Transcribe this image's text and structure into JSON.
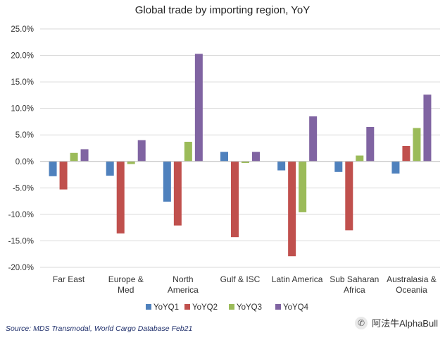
{
  "chart_data": {
    "type": "bar",
    "title": "Global trade by importing region, YoY",
    "xlabel": "",
    "ylabel": "",
    "ylim": [
      -20,
      25
    ],
    "yticks": [
      "25.0%",
      "20.0%",
      "15.0%",
      "10.0%",
      "5.0%",
      "0.0%",
      "-5.0%",
      "-10.0%",
      "-15.0%",
      "-20.0%"
    ],
    "ytick_values": [
      25,
      20,
      15,
      10,
      5,
      0,
      -5,
      -10,
      -15,
      -20
    ],
    "categories": [
      [
        "Far East"
      ],
      [
        "Europe &",
        "Med"
      ],
      [
        "North",
        "America"
      ],
      [
        "Gulf & ISC"
      ],
      [
        "Latin America"
      ],
      [
        "Sub Saharan",
        "Africa"
      ],
      [
        "Australasia &",
        "Oceania"
      ]
    ],
    "series": [
      {
        "name": "YoYQ1",
        "color": "#4f81bd",
        "values": [
          -2.8,
          -2.7,
          -7.6,
          1.8,
          -1.7,
          -2.0,
          -2.3
        ]
      },
      {
        "name": "YoYQ2",
        "color": "#c0504d",
        "values": [
          -5.3,
          -13.6,
          -12.1,
          -14.3,
          -17.9,
          -13.0,
          2.9
        ]
      },
      {
        "name": "YoYQ3",
        "color": "#9bbb59",
        "values": [
          1.6,
          -0.5,
          3.7,
          -0.3,
          -9.6,
          1.1,
          6.3
        ]
      },
      {
        "name": "YoYQ4",
        "color": "#8064a2",
        "values": [
          2.3,
          4.0,
          20.3,
          1.8,
          8.5,
          6.5,
          12.6
        ]
      }
    ],
    "legend_position": "bottom",
    "grid": true
  },
  "footer": {
    "source": "Source: MDS Transmodal, World Cargo Database Feb21",
    "watermark": "阿法牛AlphaBull",
    "watermark_icon": "wechat-icon"
  }
}
